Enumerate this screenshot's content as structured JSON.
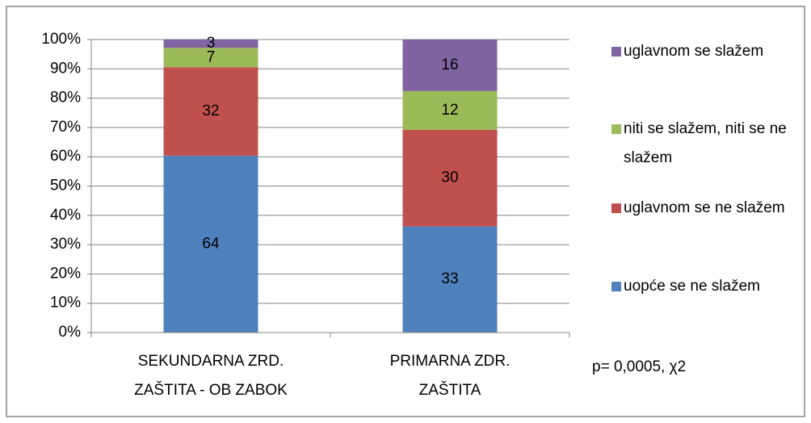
{
  "chart_data": {
    "type": "bar",
    "stacking": "percent",
    "categories": [
      "SEKUNDARNA ZRD. ZAŠTITA - OB ZABOK",
      "PRIMARNA ZDR. ZAŠTITA"
    ],
    "series": [
      {
        "name": "uopće se ne slažem",
        "color": "#4f81bd",
        "values": [
          64,
          33
        ]
      },
      {
        "name": "uglavnom se ne slažem",
        "color": "#c0504d",
        "values": [
          32,
          30
        ]
      },
      {
        "name": "niti se slažem, niti se ne slažem",
        "color": "#9bbb59",
        "values": [
          7,
          12
        ]
      },
      {
        "name": "uglavnom se slažem",
        "color": "#8064a2",
        "values": [
          3,
          16
        ]
      }
    ],
    "ylim": [
      0,
      100
    ],
    "yticks": [
      {
        "value": 0,
        "label": "0%"
      },
      {
        "value": 10,
        "label": "10%"
      },
      {
        "value": 20,
        "label": "20%"
      },
      {
        "value": 30,
        "label": "30%"
      },
      {
        "value": 40,
        "label": "40%"
      },
      {
        "value": 50,
        "label": "50%"
      },
      {
        "value": 60,
        "label": "60%"
      },
      {
        "value": 70,
        "label": "70%"
      },
      {
        "value": 80,
        "label": "80%"
      },
      {
        "value": 90,
        "label": "90%"
      },
      {
        "value": 100,
        "label": "100%"
      }
    ],
    "grid": true,
    "legend": "right",
    "annotation": "p= 0,0005, χ2"
  }
}
